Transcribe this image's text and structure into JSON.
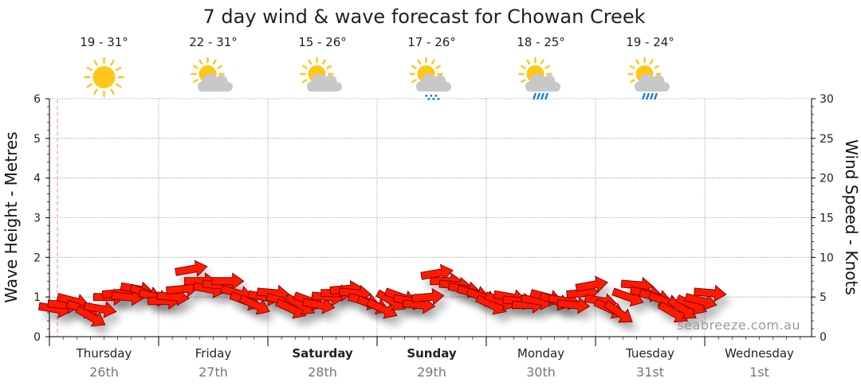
{
  "colors": {
    "arrow_fill": "#ff1a00",
    "arrow_stroke": "#7a0000",
    "grid": "#9a9a9a",
    "now_line": "#f4a0a0",
    "sun": "#ffc61a",
    "cloud": "#c8c8c8",
    "rain": "#1e7de0",
    "watermark": "#9a9a9a"
  },
  "watermark": "seabreeze.com.au",
  "chart_data": {
    "type": "line",
    "title": "7 day wind & wave forecast for Chowan Creek",
    "ylabel_left": "Wave Height - Metres",
    "ylabel_right": "Wind Speed - Knots",
    "ylim_left": [
      0,
      6
    ],
    "ylim_right": [
      0,
      30
    ],
    "left_ticks": [
      "0",
      "1",
      "2",
      "3",
      "4",
      "5",
      "6"
    ],
    "right_ticks": [
      "0",
      "5",
      "10",
      "15",
      "20",
      "25",
      "30"
    ],
    "grid": true,
    "days": [
      {
        "name": "Thursday",
        "date": "26th",
        "temp": "19 - 31°",
        "icon": "sunny-icon",
        "bold": false
      },
      {
        "name": "Friday",
        "date": "27th",
        "temp": "22 - 31°",
        "icon": "partly-cloudy-icon",
        "bold": false
      },
      {
        "name": "Saturday",
        "date": "28th",
        "temp": "15 - 26°",
        "icon": "partly-cloudy-icon",
        "bold": true
      },
      {
        "name": "Sunday",
        "date": "29th",
        "temp": "17 - 26°",
        "icon": "showers-icon",
        "bold": true
      },
      {
        "name": "Monday",
        "date": "30th",
        "temp": "18 - 25°",
        "icon": "rain-icon",
        "bold": false
      },
      {
        "name": "Tuesday",
        "date": "31st",
        "temp": "19 - 24°",
        "icon": "rain-icon",
        "bold": false
      },
      {
        "name": "Wednesday",
        "date": "1st",
        "temp": "",
        "icon": "",
        "bold": false
      }
    ],
    "series": [
      {
        "name": "Wind Speed",
        "unit": "knots",
        "x_days": [
          0.0,
          0.083,
          0.167,
          0.25,
          0.333,
          0.417,
          0.5,
          0.583,
          0.667,
          0.75,
          0.833,
          0.917,
          1.0,
          1.083,
          1.167,
          1.25,
          1.333,
          1.417,
          1.5,
          1.583,
          1.667,
          1.75,
          1.833,
          1.917,
          2.0,
          2.083,
          2.167,
          2.25,
          2.333,
          2.417,
          2.5,
          2.583,
          2.667,
          2.75,
          2.833,
          2.917,
          3.0,
          3.083,
          3.167,
          3.25,
          3.333,
          3.417,
          3.5,
          3.583,
          3.667,
          3.75,
          3.833,
          3.917,
          4.0,
          4.083,
          4.167,
          4.25,
          4.333,
          4.417,
          4.5,
          4.583,
          4.667,
          4.75,
          4.833,
          4.917,
          5.0,
          5.083,
          5.167,
          5.25,
          5.333,
          5.417,
          5.5,
          5.583,
          5.667,
          5.75,
          5.833,
          5.917,
          6.0
        ],
        "values": [
          3.5,
          4.0,
          4.5,
          3.5,
          2.5,
          3.5,
          5.0,
          5.5,
          5.0,
          6.0,
          5.5,
          5.0,
          4.5,
          5.0,
          6.0,
          8.5,
          7.0,
          6.0,
          6.5,
          7.0,
          5.5,
          4.5,
          4.0,
          5.0,
          5.5,
          4.5,
          3.5,
          4.0,
          4.5,
          4.0,
          5.0,
          5.5,
          6.0,
          5.5,
          4.5,
          4.0,
          3.5,
          4.5,
          5.0,
          4.5,
          4.0,
          5.0,
          8.0,
          7.0,
          6.5,
          6.0,
          5.5,
          5.0,
          4.0,
          4.5,
          5.0,
          4.5,
          4.0,
          4.5,
          5.0,
          4.5,
          4.5,
          4.0,
          5.5,
          6.5,
          4.5,
          3.5,
          3.0,
          5.0,
          6.5,
          5.5,
          5.0,
          4.5,
          3.0,
          3.5,
          4.0,
          4.5,
          5.5
        ],
        "directions_deg": [
          100,
          95,
          105,
          110,
          120,
          100,
          90,
          85,
          95,
          100,
          110,
          105,
          90,
          95,
          85,
          80,
          90,
          100,
          95,
          90,
          105,
          110,
          115,
          100,
          95,
          105,
          115,
          120,
          110,
          100,
          95,
          90,
          85,
          95,
          105,
          110,
          115,
          120,
          110,
          100,
          95,
          85,
          80,
          90,
          95,
          100,
          105,
          110,
          115,
          110,
          100,
          95,
          90,
          100,
          105,
          110,
          100,
          95,
          85,
          80,
          100,
          115,
          125,
          110,
          95,
          100,
          105,
          110,
          120,
          125,
          115,
          105,
          95
        ]
      }
    ]
  }
}
